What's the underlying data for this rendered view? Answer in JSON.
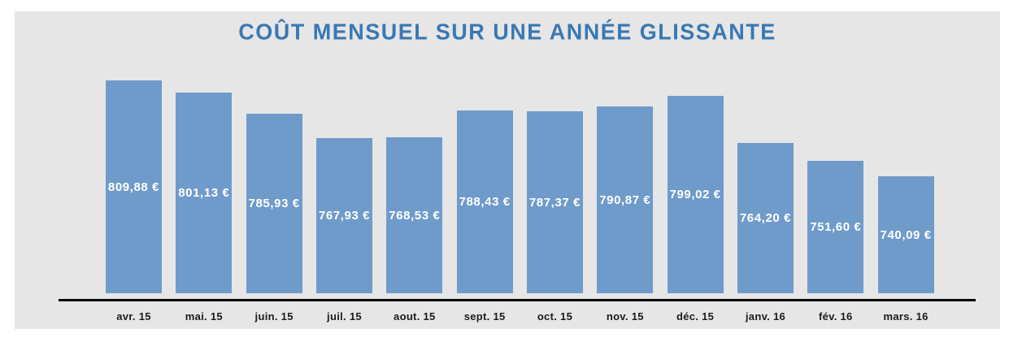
{
  "title": "COÛT MENSUEL SUR UNE ANNÉE GLISSANTE",
  "chart_data": {
    "type": "bar",
    "title": "COÛT MENSUEL SUR UNE ANNÉE GLISSANTE",
    "categories": [
      "avr. 15",
      "mai. 15",
      "juin. 15",
      "juil. 15",
      "aout. 15",
      "sept. 15",
      "oct. 15",
      "nov. 15",
      "déc. 15",
      "janv. 16",
      "fév. 16",
      "mars. 16"
    ],
    "values": [
      809.88,
      801.13,
      785.93,
      767.93,
      768.53,
      788.43,
      787.37,
      790.87,
      799.02,
      764.2,
      751.6,
      740.09
    ],
    "value_labels": [
      "809,88 €",
      "801,13 €",
      "785,93 €",
      "767,93 €",
      "768,53 €",
      "788,43 €",
      "787,37 €",
      "790,87 €",
      "799,02 €",
      "764,20 €",
      "751,60 €",
      "740,09 €"
    ],
    "xlabel": "",
    "ylabel": "",
    "ylim": [
      655,
      820
    ],
    "grid": false,
    "legend": false,
    "value_label_position": "center-inside",
    "colors": {
      "bar": "#6f9bcb",
      "panel_background": "#e6e6e6",
      "page_background": "#ffffff",
      "title_text": "#3878b4",
      "value_label_text": "#ffffff",
      "axis_line": "#000000",
      "category_text": "#1b1b1b"
    }
  }
}
